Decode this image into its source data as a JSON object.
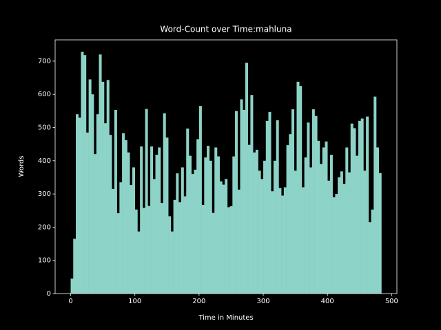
{
  "chart_data": {
    "type": "bar",
    "title": "Word-Count over Time:mahluna",
    "x_label": "Time in Minutes",
    "y_label": "Words",
    "color": "#8dd3c7",
    "bar_width": 4,
    "x": [
      0,
      4,
      8,
      12,
      16,
      20,
      24,
      28,
      32,
      36,
      40,
      44,
      48,
      52,
      56,
      60,
      64,
      68,
      72,
      76,
      80,
      84,
      88,
      92,
      96,
      100,
      104,
      108,
      112,
      116,
      120,
      124,
      128,
      132,
      136,
      140,
      144,
      148,
      152,
      156,
      160,
      164,
      168,
      172,
      176,
      180,
      184,
      188,
      192,
      196,
      200,
      204,
      208,
      212,
      216,
      220,
      224,
      228,
      232,
      236,
      240,
      244,
      248,
      252,
      256,
      260,
      264,
      268,
      272,
      276,
      280,
      284,
      288,
      292,
      296,
      300,
      304,
      308,
      312,
      316,
      320,
      324,
      328,
      332,
      336,
      340,
      344,
      348,
      352,
      356,
      360,
      364,
      368,
      372,
      376,
      380,
      384,
      388,
      392,
      396,
      400,
      404,
      408,
      412,
      416,
      420,
      424,
      428,
      432,
      436,
      440,
      444,
      448,
      452,
      456,
      460,
      464,
      468,
      472,
      476,
      480
    ],
    "values": [
      45,
      165,
      540,
      530,
      728,
      718,
      485,
      645,
      600,
      420,
      540,
      720,
      638,
      513,
      643,
      478,
      315,
      553,
      242,
      335,
      483,
      462,
      425,
      327,
      380,
      253,
      187,
      443,
      258,
      556,
      264,
      443,
      345,
      418,
      440,
      273,
      543,
      470,
      233,
      187,
      282,
      362,
      275,
      380,
      293,
      497,
      415,
      360,
      373,
      465,
      565,
      267,
      410,
      445,
      400,
      243,
      440,
      413,
      338,
      328,
      345,
      260,
      263,
      413,
      550,
      313,
      585,
      553,
      695,
      448,
      598,
      425,
      433,
      370,
      345,
      400,
      520,
      547,
      308,
      400,
      522,
      318,
      295,
      320,
      447,
      480,
      555,
      370,
      638,
      625,
      320,
      410,
      515,
      380,
      555,
      535,
      460,
      390,
      440,
      458,
      340,
      418,
      290,
      300,
      350,
      368,
      330,
      440,
      365,
      512,
      498,
      415,
      520,
      527,
      370,
      533,
      215,
      253,
      593,
      440,
      363
    ],
    "xlim": [
      -24.2,
      508.2
    ],
    "ylim": [
      0,
      764
    ],
    "xticks": [
      0,
      100,
      200,
      300,
      400,
      500
    ],
    "yticks": [
      0,
      100,
      200,
      300,
      400,
      500,
      600,
      700
    ]
  }
}
